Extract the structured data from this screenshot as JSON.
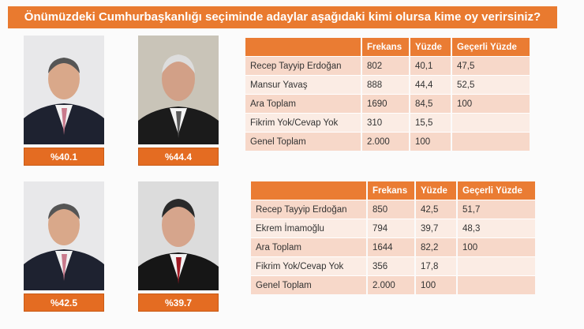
{
  "title": "Önümüzdeki Cumhurbaşkanlığı seçiminde adaylar aşağıdaki kimi olursa kime oy verirsiniz?",
  "colors": {
    "accent": "#e97a2f",
    "row_dark": "#f7d8c9",
    "row_light": "#fbece4"
  },
  "scenario1": {
    "labels": [
      "%40.1",
      "%44.4"
    ],
    "headers": [
      "",
      "Frekans",
      "Yüzde",
      "Geçerli Yüzde"
    ],
    "rows": [
      [
        "Recep Tayyip Erdoğan",
        "802",
        "40,1",
        "47,5"
      ],
      [
        "Mansur Yavaş",
        "888",
        "44,4",
        "52,5"
      ],
      [
        "Ara Toplam",
        "1690",
        "84,5",
        "100"
      ],
      [
        "Fikrim Yok/Cevap Yok",
        "310",
        "15,5",
        ""
      ],
      [
        "Genel Toplam",
        "2.000",
        "100",
        ""
      ]
    ]
  },
  "scenario2": {
    "labels": [
      "%42.5",
      "%39.7"
    ],
    "headers": [
      "",
      "Frekans",
      "Yüzde",
      "Geçerli Yüzde"
    ],
    "rows": [
      [
        "Recep Tayyip Erdoğan",
        "850",
        "42,5",
        "51,7"
      ],
      [
        "Ekrem İmamoğlu",
        "794",
        "39,7",
        "48,3"
      ],
      [
        "Ara Toplam",
        "1644",
        "82,2",
        "100"
      ],
      [
        "Fikrim Yok/Cevap Yok",
        "356",
        "17,8",
        ""
      ],
      [
        "Genel Toplam",
        "2.000",
        "100",
        ""
      ]
    ]
  }
}
